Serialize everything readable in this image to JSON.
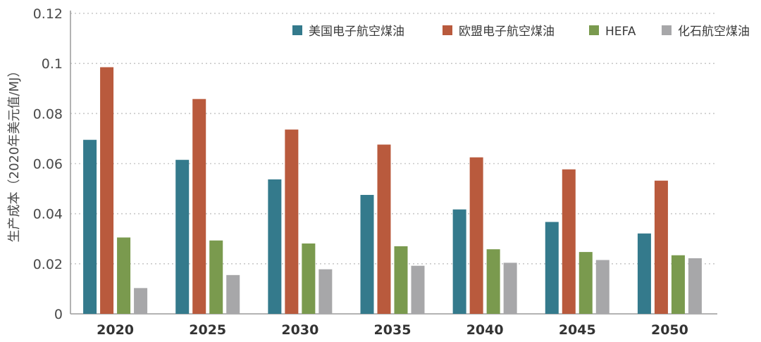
{
  "chart_data": {
    "type": "bar",
    "ylabel": "生产成本（2020年美元值/MJ）",
    "xlabel": "",
    "ylim": [
      0,
      0.12
    ],
    "yticks": [
      {
        "v": 0,
        "label": "0"
      },
      {
        "v": 0.02,
        "label": "0.02"
      },
      {
        "v": 0.04,
        "label": "0.04"
      },
      {
        "v": 0.06,
        "label": "0.06"
      },
      {
        "v": 0.08,
        "label": "0.08"
      },
      {
        "v": 0.1,
        "label": "0.1"
      },
      {
        "v": 0.12,
        "label": "0.12"
      }
    ],
    "grid": true,
    "legend_position": "top-right",
    "categories": [
      "2020",
      "2025",
      "2030",
      "2035",
      "2040",
      "2045",
      "2050"
    ],
    "series": [
      {
        "name": "美国电子航空煤油",
        "color": "#347a8c",
        "values": [
          0.0695,
          0.0615,
          0.0537,
          0.0475,
          0.0417,
          0.0367,
          0.0321
        ]
      },
      {
        "name": "欧盟电子航空煤油",
        "color": "#b95a3d",
        "values": [
          0.0985,
          0.0858,
          0.0736,
          0.0676,
          0.0625,
          0.0577,
          0.0532
        ]
      },
      {
        "name": "HEFA",
        "color": "#7a9a4e",
        "values": [
          0.0305,
          0.0293,
          0.0281,
          0.027,
          0.0258,
          0.0247,
          0.0234
        ]
      },
      {
        "name": "化石航空煤油",
        "color": "#a7a7a9",
        "values": [
          0.0103,
          0.0155,
          0.0178,
          0.0192,
          0.0204,
          0.0215,
          0.0222
        ]
      }
    ]
  }
}
